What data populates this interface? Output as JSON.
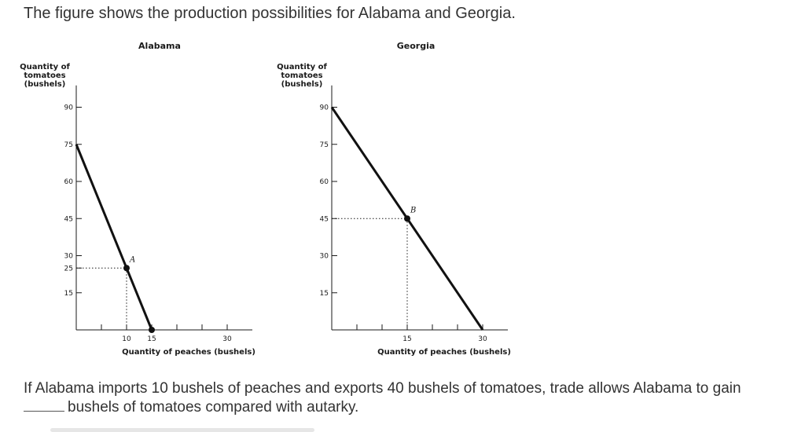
{
  "intro_text": "The figure shows the production possibilities for Alabama and Georgia.",
  "question": {
    "text_1": "If Alabama imports 10 bushels of peaches and exports 40 bushels of tomatoes, trade allows Alabama to gain",
    "text_2": "bushels of tomatoes compared with autarky."
  },
  "chart_data": [
    {
      "type": "line",
      "title": "Alabama",
      "ylabel": [
        "Quantity of",
        "tomatoes",
        "(bushels)"
      ],
      "xlabel": "Quantity of peaches (bushels)",
      "xlim": [
        0,
        35
      ],
      "ylim": [
        0,
        95
      ],
      "y_ticks": [
        15,
        25,
        30,
        45,
        60,
        75,
        90
      ],
      "y_tick_labels": [
        "15",
        "25",
        "30",
        "45",
        "60",
        "75",
        "90"
      ],
      "x_tick_marks": [
        5,
        10,
        15,
        20,
        25,
        30
      ],
      "x_tick_labels": [
        {
          "x": 10,
          "label": "10"
        },
        {
          "x": 15,
          "label": "15"
        },
        {
          "x": 30,
          "label": "30"
        }
      ],
      "series": [
        {
          "x": [
            0,
            15
          ],
          "y": [
            75,
            0
          ]
        }
      ],
      "points": [
        {
          "label": "A",
          "x": 10,
          "y": 25,
          "dotted_guides": true
        },
        {
          "label": "",
          "x": 15,
          "y": 0,
          "dotted_guides": false
        }
      ]
    },
    {
      "type": "line",
      "title": "Georgia",
      "ylabel": [
        "Quantity of",
        "tomatoes",
        "(bushels)"
      ],
      "xlabel": "Quantity of peaches (bushels)",
      "xlim": [
        0,
        35
      ],
      "ylim": [
        0,
        95
      ],
      "y_ticks": [
        15,
        30,
        45,
        60,
        75,
        90
      ],
      "y_tick_labels": [
        "15",
        "30",
        "45",
        "60",
        "75",
        "90"
      ],
      "x_tick_marks": [
        5,
        10,
        15,
        20,
        25,
        30
      ],
      "x_tick_labels": [
        {
          "x": 15,
          "label": "15"
        },
        {
          "x": 30,
          "label": "30"
        }
      ],
      "series": [
        {
          "x": [
            0,
            30
          ],
          "y": [
            90,
            0
          ]
        }
      ],
      "points": [
        {
          "label": "B",
          "x": 15,
          "y": 45,
          "dotted_guides": true
        }
      ]
    }
  ]
}
